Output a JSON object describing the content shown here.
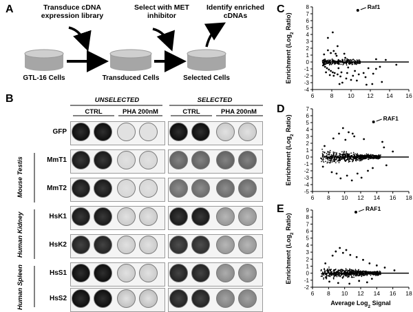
{
  "panels": {
    "a": "A",
    "b": "B",
    "c": "C",
    "d": "D",
    "e": "E"
  },
  "schematic": {
    "step1": "Transduce cDNA expression library",
    "step2": "Select with MET inhibitor",
    "step3": "Identify enriched cDNAs",
    "cell1": "GTL-16 Cells",
    "cell2": "Transduced Cells",
    "cell3": "Selected Cells"
  },
  "plates": {
    "unselected": "UNSELECTED",
    "selected": "SELECTED",
    "ctrl": "CTRL",
    "pha": "PHA 200nM",
    "rows": [
      "GFP",
      "MmT1",
      "MmT2",
      "HsK1",
      "HsK2",
      "HsS1",
      "HsS2"
    ],
    "groups": [
      "Mouse Testis",
      "Human Kidney",
      "Human Spleen"
    ]
  },
  "colors": {
    "dark_well": "#111111",
    "light_well": "#dcdcdc",
    "cylinder": "#bdbdbd"
  },
  "chart_data": [
    {
      "type": "scatter",
      "panel": "C",
      "ylabel": "Enrichment (Log2 Ratio)",
      "xlabel": "",
      "xlim": [
        6,
        16
      ],
      "ylim": [
        -4,
        8
      ],
      "xticks": [
        6,
        8,
        10,
        12,
        14,
        16
      ],
      "yticks": [
        -4,
        -3,
        -2,
        -1,
        0,
        1,
        2,
        3,
        4,
        5,
        6,
        7,
        8
      ],
      "annotation": {
        "text": "Raf1",
        "x": 10.7,
        "y": 7.5
      },
      "points": [
        [
          10.7,
          7.5
        ],
        [
          8.1,
          4.3
        ],
        [
          7.6,
          3.5
        ],
        [
          8.6,
          2.3
        ],
        [
          7.6,
          1.7
        ],
        [
          8.2,
          1.6
        ],
        [
          7.9,
          1.3
        ],
        [
          8.4,
          1.2
        ],
        [
          7.2,
          1.1
        ],
        [
          9.3,
          1.2
        ],
        [
          8.5,
          0.9
        ],
        [
          9.4,
          0.6
        ],
        [
          12.6,
          0.4
        ],
        [
          13.6,
          0.3
        ],
        [
          7.1,
          -0.5
        ],
        [
          7.3,
          -0.7
        ],
        [
          7.5,
          -0.9
        ],
        [
          7.7,
          -1.1
        ],
        [
          7.9,
          -1.3
        ],
        [
          8.1,
          -1.5
        ],
        [
          8.3,
          -1.6
        ],
        [
          8.6,
          -1.8
        ],
        [
          7.4,
          -1.5
        ],
        [
          7.8,
          -1.9
        ],
        [
          8.2,
          -2.0
        ],
        [
          8.9,
          -2.1
        ],
        [
          9.0,
          -1.5
        ],
        [
          9.6,
          -1.6
        ],
        [
          10.2,
          -2.0
        ],
        [
          10.4,
          -1.3
        ],
        [
          10.8,
          -1.8
        ],
        [
          11.3,
          -1.6
        ],
        [
          11.5,
          -2.2
        ],
        [
          12.3,
          -1.7
        ],
        [
          13.0,
          -0.7
        ],
        [
          13.2,
          -2.9
        ],
        [
          10.0,
          -2.6
        ],
        [
          9.1,
          -3.0
        ],
        [
          8.8,
          -3.2
        ],
        [
          11.6,
          -3.3
        ],
        [
          12.2,
          -3.2
        ],
        [
          10.6,
          -2.7
        ],
        [
          9.7,
          -0.8
        ],
        [
          8.7,
          -0.9
        ],
        [
          12.6,
          -1.0
        ],
        [
          14.7,
          -0.4
        ],
        [
          11.8,
          -0.9
        ],
        [
          9.5,
          -2.4
        ]
      ]
    },
    {
      "type": "scatter",
      "panel": "D",
      "ylabel": "Enrichment (Log2 Ratio)",
      "xlabel": "",
      "xlim": [
        6,
        18
      ],
      "ylim": [
        -5,
        7
      ],
      "xticks": [
        6,
        8,
        10,
        12,
        14,
        16,
        18
      ],
      "yticks": [
        -5,
        -4,
        -3,
        -2,
        -1,
        0,
        1,
        2,
        3,
        4,
        5,
        6,
        7
      ],
      "annotation": {
        "text": "RAF1",
        "x": 13.6,
        "y": 5.1
      },
      "points": [
        [
          13.6,
          5.1
        ],
        [
          9.8,
          4.2
        ],
        [
          10.5,
          3.6
        ],
        [
          9.3,
          3.4
        ],
        [
          11.2,
          3.0
        ],
        [
          8.6,
          2.7
        ],
        [
          12.4,
          2.6
        ],
        [
          10.1,
          2.5
        ],
        [
          14.7,
          2.2
        ],
        [
          9.0,
          -2.4
        ],
        [
          10.3,
          -2.7
        ],
        [
          11.6,
          -2.4
        ],
        [
          8.4,
          -2.2
        ],
        [
          12.9,
          -2.0
        ],
        [
          10.9,
          -3.4
        ],
        [
          9.5,
          -3.1
        ],
        [
          13.5,
          -1.6
        ],
        [
          14.9,
          1.4
        ],
        [
          15.2,
          -1.2
        ],
        [
          7.5,
          1.6
        ],
        [
          7.3,
          -1.4
        ],
        [
          16.0,
          0.8
        ],
        [
          12.1,
          -3.0
        ],
        [
          11.0,
          3.4
        ]
      ]
    },
    {
      "type": "scatter",
      "panel": "E",
      "ylabel": "Enrichment (Log2 Ratio)",
      "xlabel": "Average Log2 Signal",
      "xlim": [
        6,
        18
      ],
      "ylim": [
        -2,
        9
      ],
      "xticks": [
        6,
        8,
        10,
        12,
        14,
        16,
        18
      ],
      "yticks": [
        -2,
        -1,
        0,
        1,
        2,
        3,
        4,
        5,
        6,
        7,
        8,
        9
      ],
      "annotation": {
        "text": "RAF1",
        "x": 11.4,
        "y": 8.7
      },
      "points": [
        [
          11.4,
          8.7
        ],
        [
          9.4,
          3.6
        ],
        [
          10.2,
          3.3
        ],
        [
          8.9,
          3.1
        ],
        [
          9.8,
          2.9
        ],
        [
          10.7,
          2.6
        ],
        [
          8.5,
          2.5
        ],
        [
          11.5,
          2.3
        ],
        [
          12.3,
          1.9
        ],
        [
          13.1,
          1.4
        ],
        [
          14.0,
          1.1
        ],
        [
          15.0,
          0.8
        ],
        [
          9.2,
          -1.4
        ],
        [
          10.6,
          -1.5
        ],
        [
          8.1,
          -1.2
        ],
        [
          11.8,
          -1.1
        ],
        [
          13.4,
          -0.8
        ],
        [
          7.6,
          1.4
        ],
        [
          12.8,
          -1.3
        ],
        [
          16.2,
          0.4
        ]
      ]
    }
  ]
}
